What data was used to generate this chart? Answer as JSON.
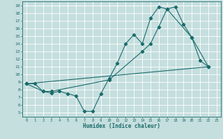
{
  "xlabel": "Humidex (Indice chaleur)",
  "background_color": "#c5dede",
  "grid_color": "#ffffff",
  "line_color": "#1a6b6b",
  "xlim": [
    -0.5,
    23.5
  ],
  "ylim": [
    4.5,
    19.5
  ],
  "xticks": [
    0,
    1,
    2,
    3,
    4,
    5,
    6,
    7,
    8,
    9,
    10,
    11,
    12,
    13,
    14,
    15,
    16,
    17,
    18,
    19,
    20,
    21,
    22,
    23
  ],
  "yticks": [
    5,
    6,
    7,
    8,
    9,
    10,
    11,
    12,
    13,
    14,
    15,
    16,
    17,
    18,
    19
  ],
  "line1_x": [
    0,
    1,
    2,
    3,
    4,
    5,
    6,
    7,
    8,
    9,
    10,
    11,
    12,
    13,
    14,
    15,
    16,
    17,
    18,
    19,
    20,
    21,
    22
  ],
  "line1_y": [
    8.8,
    8.8,
    7.8,
    7.6,
    7.8,
    7.5,
    7.2,
    5.2,
    5.2,
    7.5,
    9.5,
    11.5,
    14.0,
    15.2,
    14.0,
    17.3,
    18.8,
    18.5,
    18.8,
    16.5,
    14.8,
    11.8,
    11.0
  ],
  "line2_x": [
    0,
    2,
    3,
    10,
    14,
    15,
    16,
    17,
    20,
    22
  ],
  "line2_y": [
    8.8,
    7.8,
    7.8,
    9.3,
    13.0,
    14.0,
    16.2,
    18.5,
    14.8,
    11.0
  ],
  "line3_x": [
    0,
    22
  ],
  "line3_y": [
    8.8,
    11.0
  ]
}
